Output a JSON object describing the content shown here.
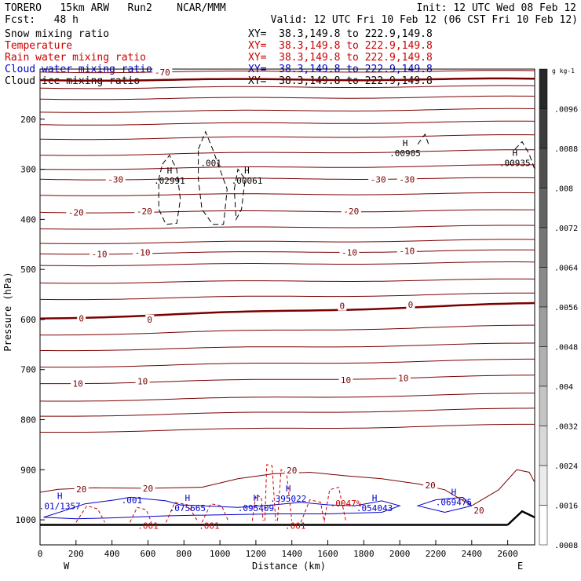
{
  "header": {
    "model": "TORERO   15km ARW   Run2    NCAR/MMM",
    "init": "Init: 12 UTC Wed 08 Feb 12",
    "fcst": "Fcst:   48 h",
    "valid": "Valid: 12 UTC Fri 10 Feb 12 (06 CST Fri 10 Feb 12)"
  },
  "fields": [
    {
      "label": "Snow mixing ratio",
      "xy": "XY=  38.3,149.8 to 222.9,149.8",
      "color": "#000000"
    },
    {
      "label": "Temperature",
      "xy": "XY=  38.3,149.8 to 222.9,149.8",
      "color": "#cc0000"
    },
    {
      "label": "Rain water mixing ratio",
      "xy": "XY=  38.3,149.8 to 222.9,149.8",
      "color": "#cc0000"
    },
    {
      "label": "Cloud water mixing ratio",
      "xy": "XY=  38.3,149.8 to 222.9,149.8",
      "color": "#0000cc"
    },
    {
      "label": "Cloud ice mixing ratio",
      "xy": "XY=  38.3,149.8 to 222.9,149.8",
      "color": "#000000"
    }
  ],
  "chart_data": {
    "type": "contour",
    "xlabel": "Distance (km)",
    "ylabel": "Pressure (hPa)",
    "xlim": [
      0,
      2750
    ],
    "ylim": [
      1050,
      100
    ],
    "x_ticks": [
      "0",
      "200",
      "400",
      "600",
      "800",
      "1000",
      "1200",
      "1400",
      "1600",
      "1800",
      "2000",
      "2200",
      "2400",
      "2600"
    ],
    "y_ticks": [
      "200",
      "300",
      "400",
      "500",
      "600",
      "700",
      "800",
      "900",
      "1000"
    ],
    "x_end_labels": {
      "left": "W",
      "right": "E"
    },
    "colorbar": {
      "unit": "g kg-1",
      "labels": [
        ".0096",
        ".0088",
        ".008",
        ".0072",
        ".0064",
        ".0056",
        ".0048",
        ".004",
        ".0032",
        ".0024",
        ".0016",
        ".0008"
      ]
    },
    "temperature_labels": [
      {
        "x": 680,
        "p": 106,
        "text": "-70"
      },
      {
        "x": 420,
        "p": 320,
        "text": "-30"
      },
      {
        "x": 1880,
        "p": 320,
        "text": "-30"
      },
      {
        "x": 2040,
        "p": 320,
        "text": "-30"
      },
      {
        "x": 200,
        "p": 386,
        "text": "-20"
      },
      {
        "x": 580,
        "p": 384,
        "text": "-20"
      },
      {
        "x": 1730,
        "p": 384,
        "text": "-20"
      },
      {
        "x": 330,
        "p": 469,
        "text": "-10"
      },
      {
        "x": 570,
        "p": 466,
        "text": "-10"
      },
      {
        "x": 1720,
        "p": 466,
        "text": "-10"
      },
      {
        "x": 2040,
        "p": 463,
        "text": "-10"
      },
      {
        "x": 230,
        "p": 598,
        "text": "0"
      },
      {
        "x": 610,
        "p": 600,
        "text": "0"
      },
      {
        "x": 1680,
        "p": 573,
        "text": "0"
      },
      {
        "x": 2060,
        "p": 570,
        "text": "0"
      },
      {
        "x": 210,
        "p": 728,
        "text": "10"
      },
      {
        "x": 570,
        "p": 723,
        "text": "10"
      },
      {
        "x": 1700,
        "p": 721,
        "text": "10"
      },
      {
        "x": 2020,
        "p": 717,
        "text": "10"
      },
      {
        "x": 230,
        "p": 939,
        "text": "20"
      },
      {
        "x": 600,
        "p": 937,
        "text": "20"
      },
      {
        "x": 1400,
        "p": 901,
        "text": "20"
      },
      {
        "x": 2170,
        "p": 931,
        "text": "20"
      },
      {
        "x": 2440,
        "p": 981,
        "text": "20"
      }
    ],
    "maxima_labels": [
      {
        "x": 110,
        "p": 968,
        "h": "H",
        "value": ".01/1357",
        "color": "#0000cc"
      },
      {
        "x": 510,
        "p": 956,
        "h": "",
        "value": ".001",
        "color": "#0000cc"
      },
      {
        "x": 820,
        "p": 972,
        "h": "H",
        "value": ".075665",
        "color": "#0000cc"
      },
      {
        "x": 1200,
        "p": 972,
        "h": "H",
        "value": ".095409",
        "color": "#0000cc"
      },
      {
        "x": 1380,
        "p": 953,
        "h": "H",
        "value": ".395022",
        "color": "#0000cc"
      },
      {
        "x": 1700,
        "p": 962,
        "h": "",
        "value": ".0047%",
        "color": "#cc0000"
      },
      {
        "x": 1860,
        "p": 972,
        "h": "H",
        "value": ".054043",
        "color": "#0000cc"
      },
      {
        "x": 2300,
        "p": 960,
        "h": "H",
        "value": ".069475",
        "color": "#0000cc"
      },
      {
        "x": 600,
        "p": 1007,
        "h": "",
        "value": ".001",
        "color": "#cc0000"
      },
      {
        "x": 940,
        "p": 1007,
        "h": "",
        "value": ".001",
        "color": "#cc0000"
      },
      {
        "x": 1420,
        "p": 1007,
        "h": "",
        "value": ".001",
        "color": "#cc0000"
      },
      {
        "x": 720,
        "p": 318,
        "h": "H",
        "value": ".02991",
        "color": "#000000"
      },
      {
        "x": 1150,
        "p": 318,
        "h": "H",
        "value": ".00061",
        "color": "#000000"
      },
      {
        "x": 950,
        "p": 283,
        "h": "",
        "value": ".001",
        "color": "#000000"
      },
      {
        "x": 2030,
        "p": 263,
        "h": "H",
        "value": ".00905",
        "color": "#000000"
      },
      {
        "x": 2640,
        "p": 283,
        "h": "H",
        "value": ".00935",
        "color": "#000000"
      }
    ]
  }
}
